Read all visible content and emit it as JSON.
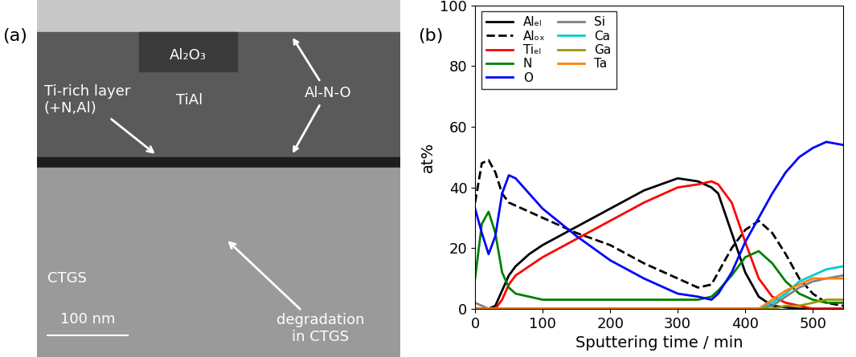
{
  "figure": {
    "panel_labels": [
      "(a)",
      "(b)"
    ]
  },
  "micrograph": {
    "labels": {
      "top_layer": "Al₂O₃",
      "left_layer": "Ti-rich layer\n(+N,Al)",
      "middle_layer": "TiAl",
      "interface": "Al-N-O",
      "substrate": "CTGS",
      "defect": "degradation\nin CTGS"
    },
    "scale_bar": "100 nm"
  },
  "chart_data": {
    "type": "line",
    "x_label": "Sputtering time / min",
    "y_label": "at%",
    "x": [
      0,
      10,
      20,
      30,
      40,
      50,
      60,
      80,
      100,
      150,
      200,
      250,
      300,
      330,
      350,
      360,
      380,
      400,
      420,
      440,
      460,
      480,
      500,
      520,
      545
    ],
    "xlim": [
      0,
      545
    ],
    "xticks": [
      0,
      100,
      200,
      300,
      400,
      500
    ],
    "ylim": [
      0,
      100
    ],
    "yticks": [
      0,
      20,
      40,
      60,
      80,
      100
    ],
    "legend": "upper left",
    "series": [
      {
        "name": "Alₑₗ",
        "color": "#000000",
        "line_style": "solid",
        "values": [
          0,
          0,
          0,
          1,
          6,
          11,
          14,
          18,
          21,
          27,
          33,
          39,
          43,
          42,
          40,
          38,
          25,
          12,
          4,
          1,
          0.5,
          0,
          0,
          0,
          0
        ]
      },
      {
        "name": "Alₒₓ",
        "color": "#000000",
        "line_style": "dashed",
        "values": [
          35,
          48,
          49,
          45,
          38,
          35,
          34,
          32,
          30,
          25,
          21,
          15,
          10,
          7,
          8,
          12,
          20,
          26,
          29,
          25,
          18,
          10,
          5,
          2,
          1
        ]
      },
      {
        "name": "Tiₑₗ",
        "color": "#ff0000",
        "line_style": "solid",
        "values": [
          0,
          0,
          0,
          0,
          3,
          8,
          11,
          14,
          17,
          23,
          29,
          35,
          40,
          41,
          42,
          41,
          35,
          22,
          10,
          4,
          2,
          1,
          0,
          0,
          0
        ]
      },
      {
        "name": "N",
        "color": "#008000",
        "line_style": "solid",
        "values": [
          10,
          28,
          32,
          25,
          12,
          7,
          5,
          4,
          3,
          3,
          3,
          3,
          3,
          3,
          4,
          6,
          11,
          17,
          19,
          15,
          9,
          5,
          3,
          2,
          2
        ]
      },
      {
        "name": "O",
        "color": "#0000ff",
        "line_style": "solid",
        "values": [
          33,
          25,
          18,
          24,
          38,
          44,
          43,
          38,
          33,
          24,
          16,
          10,
          5,
          4,
          3,
          5,
          12,
          22,
          30,
          38,
          45,
          50,
          53,
          55,
          54
        ]
      },
      {
        "name": "Si",
        "color": "#808080",
        "line_style": "solid",
        "values": [
          2,
          1,
          0,
          0,
          0,
          0,
          0,
          0,
          0,
          0,
          0,
          0,
          0,
          0,
          0,
          0,
          0,
          0,
          0,
          1,
          4,
          7,
          9,
          10,
          11
        ]
      },
      {
        "name": "Ca",
        "color": "#00cccc",
        "line_style": "solid",
        "values": [
          0,
          0,
          0,
          0,
          0,
          0,
          0,
          0,
          0,
          0,
          0,
          0,
          0,
          0,
          0,
          0,
          0,
          0,
          0,
          2,
          5,
          9,
          11,
          13,
          14
        ]
      },
      {
        "name": "Ga",
        "color": "#999900",
        "line_style": "solid",
        "values": [
          0,
          0,
          0,
          0,
          0,
          0,
          0,
          0,
          0,
          0,
          0,
          0,
          0,
          0,
          0,
          0,
          0,
          0,
          0,
          0,
          1,
          1,
          2,
          3,
          3
        ]
      },
      {
        "name": "Ta",
        "color": "#ff7f0e",
        "line_style": "solid",
        "values": [
          0,
          0,
          0,
          0,
          0,
          0,
          0,
          0,
          0,
          0,
          0,
          0,
          0,
          0,
          0,
          0,
          0,
          0,
          0,
          3,
          6,
          8,
          10,
          10,
          10
        ]
      }
    ]
  }
}
